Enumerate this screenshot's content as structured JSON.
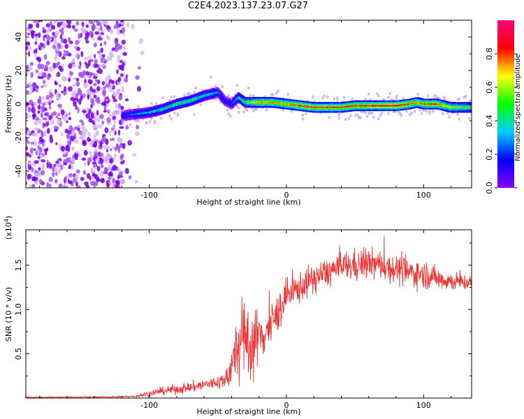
{
  "title": "C2E4.2023.137.23.07.G27",
  "colors": {
    "snr_line": "#ee3333",
    "frame": "#000000"
  },
  "chart_data": [
    {
      "type": "heatmap",
      "xlabel": "Height of straight line (km)",
      "ylabel": "Frequency (Hz)",
      "xlim": [
        -190,
        135
      ],
      "ylim": [
        -50,
        50
      ],
      "xticks": [
        -100,
        0,
        100
      ],
      "yticks": [
        -40,
        -20,
        0,
        20,
        40
      ],
      "colorbar": {
        "label": "Normalized spectral amplitude",
        "range": [
          0.0,
          1.0
        ],
        "ticks": [
          0.0,
          0.2,
          0.4,
          0.6,
          0.8
        ],
        "colormap": [
          "#ffffff",
          "#8800ff",
          "#0000ff",
          "#00ccff",
          "#00ff00",
          "#ffff00",
          "#ff0000",
          "#ff0080"
        ]
      },
      "noise_region_x": [
        -190,
        -105
      ],
      "ridge": {
        "x": [
          -120,
          -110,
          -100,
          -90,
          -80,
          -70,
          -60,
          -50,
          -45,
          -40,
          -35,
          -30,
          -20,
          -10,
          0,
          10,
          20,
          30,
          40,
          50,
          60,
          70,
          80,
          90,
          95,
          100,
          110,
          120,
          135
        ],
        "freq": [
          -7,
          -6,
          -5,
          -3,
          0,
          2,
          5,
          7,
          2,
          0,
          4,
          1,
          1,
          1,
          0,
          -1,
          -2,
          -2,
          -2,
          -1,
          -1,
          -1,
          -1,
          0,
          1,
          0,
          0,
          -2,
          -2
        ],
        "amplitude": [
          0.3,
          0.4,
          0.45,
          0.5,
          0.55,
          0.55,
          0.5,
          0.4,
          0.3,
          0.35,
          0.5,
          0.6,
          0.8,
          0.8,
          0.8,
          0.85,
          0.85,
          0.85,
          0.85,
          0.85,
          0.85,
          0.9,
          0.9,
          0.85,
          0.8,
          0.85,
          0.85,
          0.7,
          0.6
        ]
      }
    },
    {
      "type": "line",
      "xlabel": "Height of straight line (km)",
      "ylabel": "SNR (10 * v/v)",
      "y_multiplier": "(x10",
      "y_multiplier_exp": "4",
      "y_multiplier_close": ")",
      "xlim": [
        -190,
        135
      ],
      "ylim": [
        0,
        1.9
      ],
      "xticks": [
        -100,
        0,
        100
      ],
      "yticks": [
        0.5,
        1.0,
        1.5
      ],
      "ytick_labels": [
        "0.5",
        "1.0",
        "1.5"
      ],
      "envelope": {
        "x": [
          -190,
          -150,
          -120,
          -110,
          -100,
          -90,
          -80,
          -70,
          -60,
          -50,
          -45,
          -40,
          -35,
          -30,
          -25,
          -20,
          -15,
          -10,
          -5,
          0,
          10,
          20,
          30,
          40,
          50,
          60,
          70,
          80,
          90,
          100,
          110,
          120,
          135
        ],
        "mean": [
          0.01,
          0.01,
          0.015,
          0.02,
          0.05,
          0.08,
          0.1,
          0.12,
          0.15,
          0.18,
          0.2,
          0.35,
          0.6,
          0.65,
          0.6,
          0.7,
          0.75,
          0.85,
          1.0,
          1.15,
          1.25,
          1.35,
          1.42,
          1.48,
          1.5,
          1.52,
          1.5,
          1.45,
          1.42,
          1.4,
          1.35,
          1.32,
          1.3
        ],
        "spread": [
          0.005,
          0.006,
          0.008,
          0.01,
          0.03,
          0.04,
          0.05,
          0.06,
          0.06,
          0.07,
          0.1,
          0.2,
          0.4,
          0.45,
          0.35,
          0.3,
          0.25,
          0.22,
          0.2,
          0.18,
          0.16,
          0.15,
          0.15,
          0.16,
          0.16,
          0.16,
          0.16,
          0.15,
          0.15,
          0.14,
          0.12,
          0.1,
          0.08
        ]
      }
    }
  ]
}
